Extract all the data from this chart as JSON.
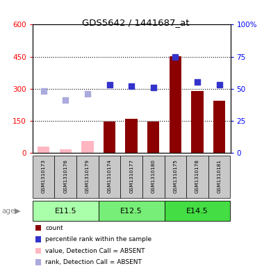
{
  "title": "GDS5642 / 1441687_at",
  "samples": [
    "GSM1310173",
    "GSM1310176",
    "GSM1310179",
    "GSM1310174",
    "GSM1310177",
    "GSM1310180",
    "GSM1310175",
    "GSM1310178",
    "GSM1310181"
  ],
  "absent_mask": [
    true,
    true,
    true,
    false,
    false,
    false,
    false,
    false,
    false
  ],
  "count_values": [
    30,
    18,
    55,
    145,
    160,
    147,
    453,
    290,
    245
  ],
  "rank_values_pct": [
    48,
    41,
    46,
    53,
    52,
    51,
    75,
    55,
    53
  ],
  "groups": [
    {
      "label": "E11.5",
      "indices": [
        0,
        1,
        2
      ]
    },
    {
      "label": "E12.5",
      "indices": [
        3,
        4,
        5
      ]
    },
    {
      "label": "E14.5",
      "indices": [
        6,
        7,
        8
      ]
    }
  ],
  "group_colors": [
    "#AAFFAA",
    "#77EE77",
    "#44DD44"
  ],
  "ylim_left": [
    0,
    600
  ],
  "ylim_right": [
    0,
    100
  ],
  "yticks_left": [
    0,
    150,
    300,
    450,
    600
  ],
  "ytick_labels_left": [
    "0",
    "150",
    "300",
    "450",
    "600"
  ],
  "yticks_right": [
    0,
    25,
    50,
    75,
    100
  ],
  "ytick_labels_right": [
    "0",
    "25",
    "50",
    "75",
    "100%"
  ],
  "bar_color_present": "#8B0000",
  "bar_color_absent": "#FFB6C1",
  "dot_color_present": "#3333CC",
  "dot_color_absent": "#AAAADD",
  "tick_area_bg": "#C8C8C8",
  "legend_items": [
    {
      "label": "count",
      "color": "#8B0000"
    },
    {
      "label": "percentile rank within the sample",
      "color": "#3333CC"
    },
    {
      "label": "value, Detection Call = ABSENT",
      "color": "#FFB6C1"
    },
    {
      "label": "rank, Detection Call = ABSENT",
      "color": "#AAAADD"
    }
  ],
  "age_label_color": "#888888",
  "dotted_yticks": [
    150,
    300,
    450
  ]
}
